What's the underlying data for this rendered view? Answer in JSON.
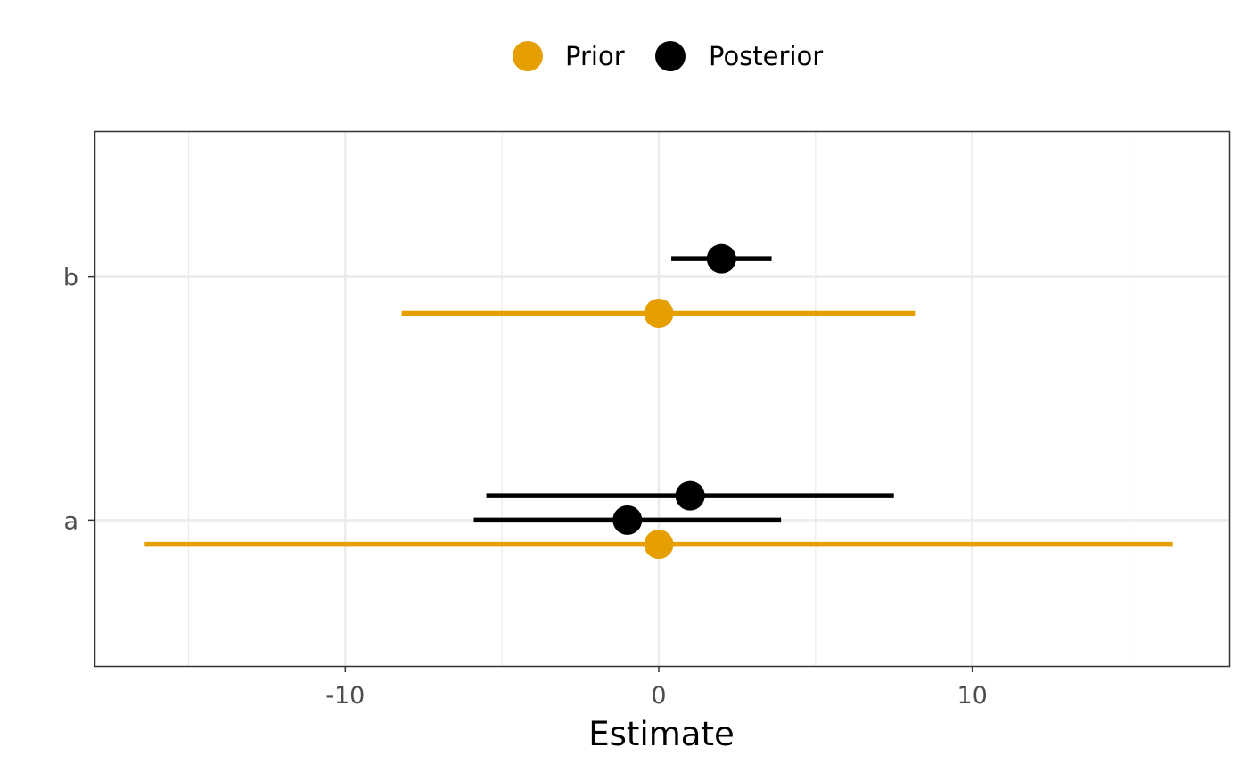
{
  "chart_data": {
    "type": "interval",
    "orientation": "horizontal",
    "xlabel": "Estimate",
    "ylabel": "",
    "xlim": [
      -18.0,
      18.2
    ],
    "xticks": [
      {
        "value": -10,
        "label": "-10"
      },
      {
        "value": 0,
        "label": "0"
      },
      {
        "value": 10,
        "label": "10"
      }
    ],
    "x_minor_gridlines": [
      -15,
      -5,
      5,
      15
    ],
    "categories": [
      "a",
      "b"
    ],
    "grid": true,
    "legend": {
      "position": "top",
      "entries": [
        {
          "label": "Prior",
          "color": "#E69F00"
        },
        {
          "label": "Posterior",
          "color": "#000000"
        }
      ]
    },
    "series": [
      {
        "name": "Prior",
        "color": "#E69F00",
        "intervals": [
          {
            "category": "b",
            "offset": -0.15,
            "estimate": 0.0,
            "low": -8.2,
            "high": 8.2
          },
          {
            "category": "a",
            "offset": -0.1,
            "estimate": 0.0,
            "low": -16.4,
            "high": 16.4
          }
        ]
      },
      {
        "name": "Posterior",
        "color": "#000000",
        "intervals": [
          {
            "category": "b",
            "offset": 0.075,
            "estimate": 2.0,
            "low": 0.4,
            "high": 3.6
          },
          {
            "category": "a",
            "offset": 0.1,
            "estimate": 1.0,
            "low": -5.5,
            "high": 7.5
          },
          {
            "category": "a",
            "offset": 0.0,
            "estimate": -1.0,
            "low": -5.9,
            "high": 3.9
          }
        ]
      }
    ]
  }
}
